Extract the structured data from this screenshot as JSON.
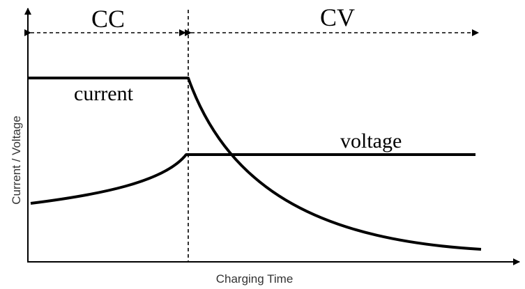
{
  "phases": {
    "cc_label": "CC",
    "cv_label": "CV"
  },
  "curves": {
    "current_label": "current",
    "voltage_label": "voltage"
  },
  "axes": {
    "x_label": "Charging Time",
    "y_label": "Current / Voltage"
  },
  "colors": {
    "ink": "#000000",
    "axis_text": "#333333",
    "background": "#ffffff"
  }
}
